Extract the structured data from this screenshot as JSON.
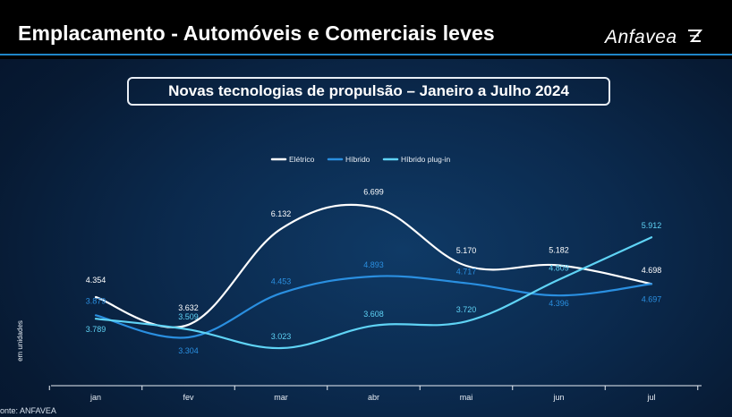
{
  "header": {
    "title": "Emplacamento - Automóveis e Comerciais leves",
    "brand": "Anfavea",
    "brand_icon": "anfavea-logo-icon"
  },
  "subtitle": "Novas tecnologias de propulsão – Janeiro a Julho 2024",
  "source": "onte: ANFAVEA",
  "colors": {
    "eletrico": "#ffffff",
    "hibrido": "#2a8fe0",
    "plugin": "#5fd3f5",
    "accent": "#1f86c9"
  },
  "chart_data": {
    "type": "line",
    "categories": [
      "jan",
      "fev",
      "mar",
      "abr",
      "mai",
      "jun",
      "jul"
    ],
    "ylabel": "em unidades",
    "legend_position": "top-center",
    "grid": false,
    "series": [
      {
        "name": "Elétrico",
        "key": "eletrico",
        "values": [
          4354,
          3632,
          6132,
          6699,
          5170,
          5182,
          4698
        ],
        "labels": [
          "4.354",
          "3.632",
          "6.132",
          "6.699",
          "5.170",
          "5.182",
          "4.698"
        ]
      },
      {
        "name": "Híbrido",
        "key": "hibrido",
        "values": [
          3879,
          3304,
          4453,
          4893,
          4717,
          4396,
          4697
        ],
        "labels": [
          "3.879",
          "3.304",
          "4.453",
          "4.893",
          "4.717",
          "4.396",
          "4.697"
        ]
      },
      {
        "name": "Híbrido plug-in",
        "key": "plugin",
        "values": [
          3789,
          3509,
          3023,
          3608,
          3720,
          4809,
          5912
        ],
        "labels": [
          "3.789",
          "3.509",
          "3.023",
          "3.608",
          "3.720",
          "4.809",
          "5.912"
        ]
      }
    ]
  }
}
